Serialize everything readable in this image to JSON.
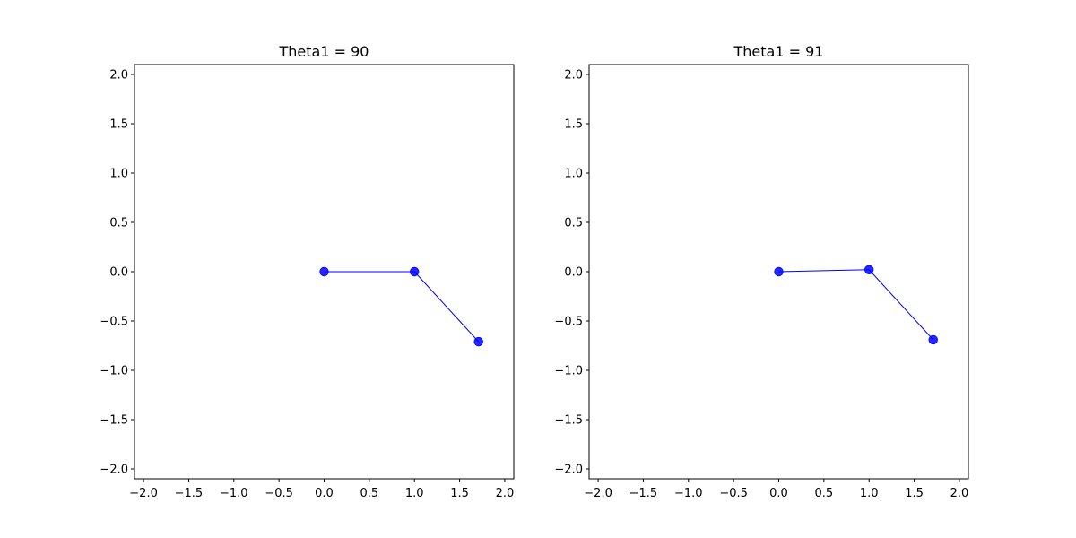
{
  "chart_data": [
    {
      "type": "line",
      "title": "Theta1 = 90",
      "xlim": [
        -2.1,
        2.1
      ],
      "ylim": [
        -2.1,
        2.1
      ],
      "xticks": [
        "−2.0",
        "−1.5",
        "−1.0",
        "−0.5",
        "0.0",
        "0.5",
        "1.0",
        "1.5",
        "2.0"
      ],
      "xtick_values": [
        -2.0,
        -1.5,
        -1.0,
        -0.5,
        0.0,
        0.5,
        1.0,
        1.5,
        2.0
      ],
      "yticks": [
        "2.0",
        "1.5",
        "1.0",
        "0.5",
        "0.0",
        "−0.5",
        "−1.0",
        "−1.5",
        "−2.0"
      ],
      "ytick_values": [
        2.0,
        1.5,
        1.0,
        0.5,
        0.0,
        -0.5,
        -1.0,
        -1.5,
        -2.0
      ],
      "grid": false,
      "series": [
        {
          "x": [
            0.0,
            1.0,
            1.71
          ],
          "y": [
            0.0,
            0.0,
            -0.71
          ],
          "color": "#0000ff",
          "marker": "o"
        }
      ]
    },
    {
      "type": "line",
      "title": "Theta1 = 91",
      "xlim": [
        -2.1,
        2.1
      ],
      "ylim": [
        -2.1,
        2.1
      ],
      "xticks": [
        "−2.0",
        "−1.5",
        "−1.0",
        "−0.5",
        "0.0",
        "0.5",
        "1.0",
        "1.5",
        "2.0"
      ],
      "xtick_values": [
        -2.0,
        -1.5,
        -1.0,
        -0.5,
        0.0,
        0.5,
        1.0,
        1.5,
        2.0
      ],
      "yticks": [
        "2.0",
        "1.5",
        "1.0",
        "0.5",
        "0.0",
        "−0.5",
        "−1.0",
        "−1.5",
        "−2.0"
      ],
      "ytick_values": [
        2.0,
        1.5,
        1.0,
        0.5,
        0.0,
        -0.5,
        -1.0,
        -1.5,
        -2.0
      ],
      "grid": false,
      "series": [
        {
          "x": [
            0.0,
            1.0,
            1.71
          ],
          "y": [
            0.0,
            0.02,
            -0.69
          ],
          "color": "#0000ff",
          "marker": "o"
        }
      ]
    }
  ]
}
